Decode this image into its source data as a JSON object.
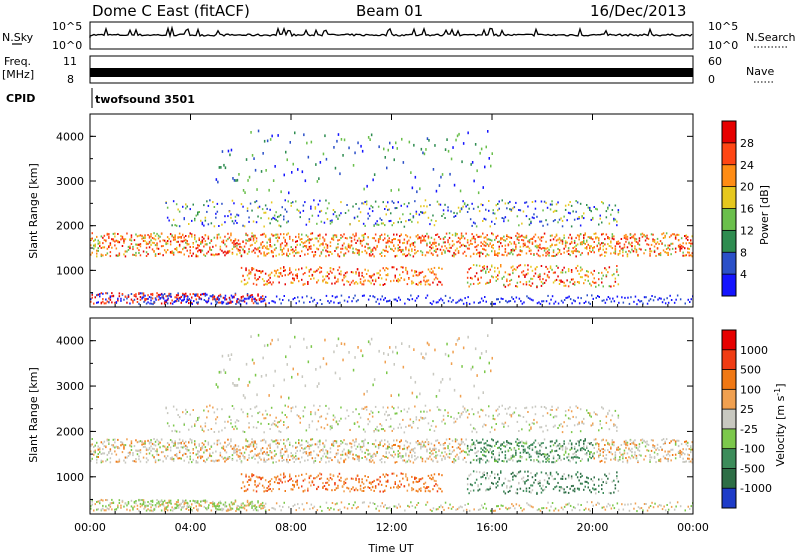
{
  "header": {
    "station": "Dome C East (fitACF)",
    "beam": "Beam 01",
    "date": "16/Dec/2013"
  },
  "top_panels": {
    "nsky_label": "N.Sky",
    "nsky_ticks": [
      "10^5",
      "10^0"
    ],
    "nsearch_label": "N.Search",
    "nsearch_ticks": [
      "10^5",
      "10^0"
    ],
    "freq_label_line1": "Freq.",
    "freq_label_line2": "[MHz]",
    "freq_ticks": [
      "11",
      "8"
    ],
    "nave_label": "Nave",
    "nave_ticks": [
      "60",
      "0"
    ],
    "cpid_label": "CPID",
    "cpid_value": "twofsound 3501"
  },
  "chart_data": [
    {
      "type": "heatmap",
      "title": "",
      "ylabel": "Slant Range [km]",
      "yticks": [
        "1000",
        "2000",
        "3000",
        "4000"
      ],
      "ylim": [
        180,
        4500
      ],
      "xlim": [
        0,
        24
      ],
      "colorbar": {
        "label": "Power [dB]",
        "ticks": [
          "4",
          "8",
          "12",
          "16",
          "20",
          "24",
          "28"
        ],
        "colors": [
          "#1414ff",
          "#2b50c8",
          "#2e8c50",
          "#6abf4b",
          "#e6c81e",
          "#ff8c14",
          "#ff4614",
          "#e60000"
        ]
      }
    },
    {
      "type": "heatmap",
      "title": "",
      "ylabel": "Slant Range [km]",
      "yticks": [
        "1000",
        "2000",
        "3000",
        "4000"
      ],
      "ylim": [
        180,
        4500
      ],
      "xlim": [
        0,
        24
      ],
      "xlabel": "Time UT",
      "xticks": [
        "00:00",
        "04:00",
        "08:00",
        "12:00",
        "16:00",
        "20:00",
        "00:00"
      ],
      "colorbar": {
        "label": "Velocity [m s^-1]",
        "ticks": [
          "1000",
          "500",
          "100",
          "25",
          "-25",
          "-100",
          "-500",
          "-1000"
        ],
        "colors": [
          "#1e3cc8",
          "#2e6e46",
          "#3c8c5a",
          "#7cc84b",
          "#c8c8c0",
          "#f0a050",
          "#f07814",
          "#f03c14",
          "#e60000"
        ]
      }
    }
  ]
}
